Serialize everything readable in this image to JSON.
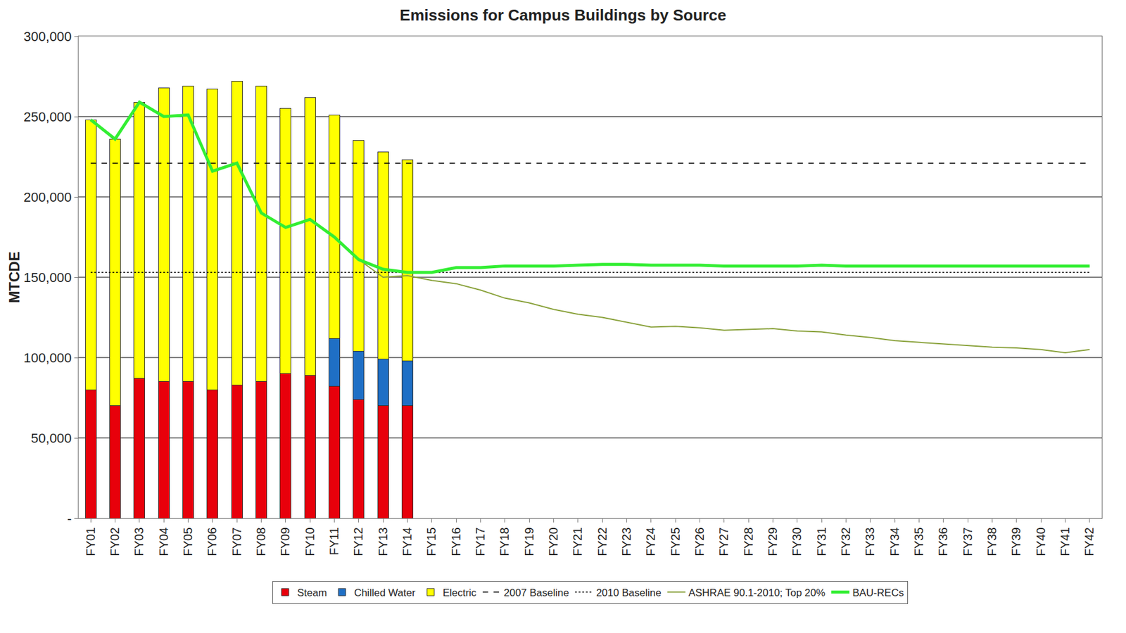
{
  "chart_data": {
    "type": "bar",
    "title": "Emissions for Campus Buildings by Source",
    "y_label": "MTCDE",
    "stacked": true,
    "grid": true,
    "legend": "bottom",
    "categories": [
      "FY01",
      "FY02",
      "FY03",
      "FY04",
      "FY05",
      "FY06",
      "FY07",
      "FY08",
      "FY09",
      "FY10",
      "FY11",
      "FY12",
      "FY13",
      "FY14",
      "FY15",
      "FY16",
      "FY17",
      "FY18",
      "FY19",
      "FY20",
      "FY21",
      "FY22",
      "FY23",
      "FY24",
      "FY25",
      "FY26",
      "FY27",
      "FY28",
      "FY29",
      "FY30",
      "FY31",
      "FY32",
      "FY33",
      "FY34",
      "FY35",
      "FY36",
      "FY37",
      "FY38",
      "FY39",
      "FY40",
      "FY41",
      "FY42"
    ],
    "ylim": [
      0,
      300000
    ],
    "yticks": [
      {
        "value": 0,
        "label": "-"
      },
      {
        "value": 50000,
        "label": "50,000"
      },
      {
        "value": 100000,
        "label": "100,000"
      },
      {
        "value": 150000,
        "label": "150,000"
      },
      {
        "value": 200000,
        "label": "200,000"
      },
      {
        "value": 250000,
        "label": "250,000"
      },
      {
        "value": 300000,
        "label": "300,000"
      }
    ],
    "series": [
      {
        "name": "Steam",
        "type": "bar",
        "color": "#e8000b",
        "values": [
          80000,
          70000,
          87000,
          85000,
          85000,
          80000,
          83000,
          85000,
          90000,
          89000,
          82000,
          74000,
          70000,
          70000,
          null,
          null,
          null,
          null,
          null,
          null,
          null,
          null,
          null,
          null,
          null,
          null,
          null,
          null,
          null,
          null,
          null,
          null,
          null,
          null,
          null,
          null,
          null,
          null,
          null,
          null,
          null,
          null
        ]
      },
      {
        "name": "Chilled Water",
        "type": "bar",
        "color": "#1f6fc5",
        "values": [
          null,
          null,
          null,
          null,
          null,
          null,
          null,
          null,
          null,
          null,
          30000,
          30000,
          29000,
          28000,
          null,
          null,
          null,
          null,
          null,
          null,
          null,
          null,
          null,
          null,
          null,
          null,
          null,
          null,
          null,
          null,
          null,
          null,
          null,
          null,
          null,
          null,
          null,
          null,
          null,
          null,
          null,
          null
        ]
      },
      {
        "name": "Electric",
        "type": "bar",
        "color": "#ffff00",
        "values": [
          168000,
          166000,
          172000,
          183000,
          184000,
          187000,
          189000,
          184000,
          165000,
          173000,
          139000,
          131000,
          129000,
          125000,
          null,
          null,
          null,
          null,
          null,
          null,
          null,
          null,
          null,
          null,
          null,
          null,
          null,
          null,
          null,
          null,
          null,
          null,
          null,
          null,
          null,
          null,
          null,
          null,
          null,
          null,
          null,
          null
        ]
      },
      {
        "name": "2007 Baseline",
        "type": "line",
        "color": "#000000",
        "line_style": "dash",
        "values": [
          221000,
          221000,
          221000,
          221000,
          221000,
          221000,
          221000,
          221000,
          221000,
          221000,
          221000,
          221000,
          221000,
          221000,
          221000,
          221000,
          221000,
          221000,
          221000,
          221000,
          221000,
          221000,
          221000,
          221000,
          221000,
          221000,
          221000,
          221000,
          221000,
          221000,
          221000,
          221000,
          221000,
          221000,
          221000,
          221000,
          221000,
          221000,
          221000,
          221000,
          221000,
          221000
        ]
      },
      {
        "name": "2010 Baseline",
        "type": "line",
        "color": "#000000",
        "line_style": "dot",
        "values": [
          153000,
          153000,
          153000,
          153000,
          153000,
          153000,
          153000,
          153000,
          153000,
          153000,
          153000,
          153000,
          153000,
          153000,
          153000,
          153000,
          153000,
          153000,
          153000,
          153000,
          153000,
          153000,
          153000,
          153000,
          153000,
          153000,
          153000,
          153000,
          153000,
          153000,
          153000,
          153000,
          153000,
          153000,
          153000,
          153000,
          153000,
          153000,
          153000,
          153000,
          153000,
          153000
        ]
      },
      {
        "name": "ASHRAE 90.1-2010; Top 20%",
        "type": "line",
        "color": "#8aa23c",
        "line_style": "solid",
        "values": [
          null,
          null,
          null,
          null,
          null,
          null,
          null,
          null,
          null,
          null,
          null,
          161000,
          150000,
          151000,
          148000,
          146000,
          142000,
          137000,
          134000,
          130000,
          127000,
          125000,
          122000,
          119000,
          119500,
          118500,
          117000,
          117500,
          118000,
          116500,
          116000,
          114000,
          112500,
          110500,
          109500,
          108500,
          107500,
          106500,
          106000,
          105000,
          103000,
          105000
        ]
      },
      {
        "name": "BAU-RECs",
        "type": "line",
        "color": "#33ee33",
        "line_style": "solid",
        "values": [
          248000,
          236000,
          259000,
          250000,
          251000,
          216000,
          221000,
          190000,
          181000,
          186000,
          175000,
          161000,
          155000,
          153000,
          153000,
          156000,
          156000,
          157000,
          157000,
          157000,
          157500,
          158000,
          158000,
          157500,
          157500,
          157500,
          157000,
          157000,
          157000,
          157000,
          157500,
          157000,
          157000,
          157000,
          157000,
          157000,
          157000,
          157000,
          157000,
          157000,
          157000,
          157000
        ]
      }
    ]
  }
}
